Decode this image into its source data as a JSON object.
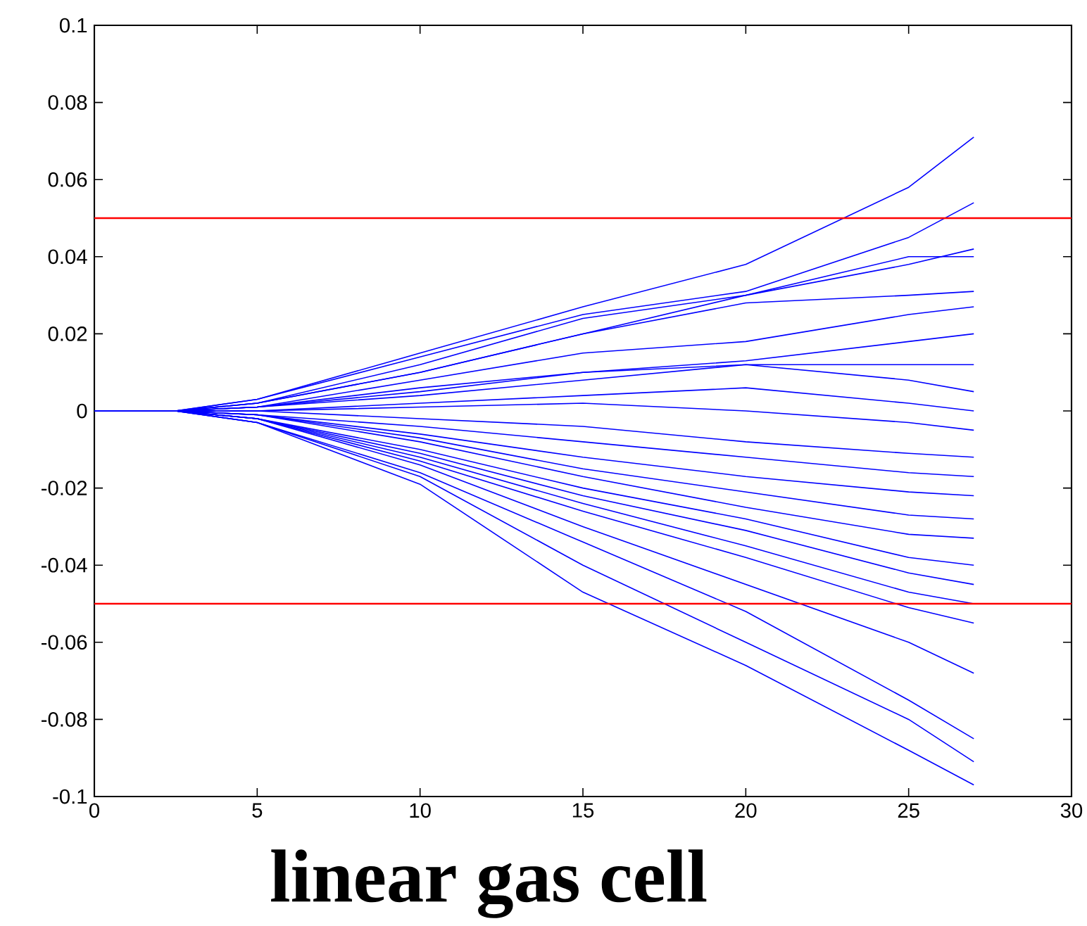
{
  "chart_data": {
    "type": "line",
    "title": "linear gas cell",
    "x": [
      0,
      2.5,
      5,
      10,
      15,
      20,
      25,
      27
    ],
    "xlim": [
      0,
      30
    ],
    "ylim": [
      -0.1,
      0.1
    ],
    "xticks": [
      0,
      5,
      10,
      15,
      20,
      25,
      30
    ],
    "yticks": [
      -0.1,
      -0.08,
      -0.06,
      -0.04,
      -0.02,
      0,
      0.02,
      0.04,
      0.06,
      0.08,
      0.1
    ],
    "ref_lines": [
      {
        "axis": "y",
        "value": 0.05,
        "color": "#ff0000"
      },
      {
        "axis": "y",
        "value": -0.05,
        "color": "#ff0000"
      }
    ],
    "series": [
      {
        "color": "#0000ff",
        "values": [
          0,
          0,
          0.003,
          0.015,
          0.027,
          0.038,
          0.058,
          0.071
        ]
      },
      {
        "color": "#0000ff",
        "values": [
          0,
          0,
          0.003,
          0.014,
          0.025,
          0.031,
          0.045,
          0.054
        ]
      },
      {
        "color": "#0000ff",
        "values": [
          0,
          0,
          0.002,
          0.012,
          0.024,
          0.03,
          0.038,
          0.042
        ]
      },
      {
        "color": "#0000ff",
        "values": [
          0,
          0,
          0.002,
          0.01,
          0.02,
          0.03,
          0.04,
          0.04
        ]
      },
      {
        "color": "#0000ff",
        "values": [
          0,
          0,
          0.002,
          0.01,
          0.02,
          0.028,
          0.03,
          0.031
        ]
      },
      {
        "color": "#0000ff",
        "values": [
          0,
          0,
          0.001,
          0.008,
          0.015,
          0.018,
          0.025,
          0.027
        ]
      },
      {
        "color": "#0000ff",
        "values": [
          0,
          0,
          0.001,
          0.006,
          0.01,
          0.013,
          0.018,
          0.02
        ]
      },
      {
        "color": "#0000ff",
        "values": [
          0,
          0,
          0.001,
          0.005,
          0.01,
          0.012,
          0.012,
          0.012
        ]
      },
      {
        "color": "#0000ff",
        "values": [
          0,
          0,
          0.001,
          0.004,
          0.008,
          0.012,
          0.008,
          0.005
        ]
      },
      {
        "color": "#0000ff",
        "values": [
          0,
          0,
          0,
          0.002,
          0.004,
          0.006,
          0.002,
          0
        ]
      },
      {
        "color": "#0000ff",
        "values": [
          0,
          0,
          0,
          0.001,
          0.002,
          0,
          -0.003,
          -0.005
        ]
      },
      {
        "color": "#0000ff",
        "values": [
          0,
          0,
          0,
          -0.002,
          -0.004,
          -0.008,
          -0.011,
          -0.012
        ]
      },
      {
        "color": "#0000ff",
        "values": [
          0,
          0,
          -0.001,
          -0.004,
          -0.008,
          -0.012,
          -0.016,
          -0.017
        ]
      },
      {
        "color": "#0000ff",
        "values": [
          0,
          0,
          -0.001,
          -0.006,
          -0.012,
          -0.017,
          -0.021,
          -0.022
        ]
      },
      {
        "color": "#0000ff",
        "values": [
          0,
          0,
          -0.001,
          -0.007,
          -0.015,
          -0.021,
          -0.027,
          -0.028
        ]
      },
      {
        "color": "#0000ff",
        "values": [
          0,
          0,
          -0.001,
          -0.008,
          -0.017,
          -0.025,
          -0.032,
          -0.033
        ]
      },
      {
        "color": "#0000ff",
        "values": [
          0,
          0,
          -0.002,
          -0.01,
          -0.02,
          -0.028,
          -0.038,
          -0.04
        ]
      },
      {
        "color": "#0000ff",
        "values": [
          0,
          0,
          -0.002,
          -0.011,
          -0.022,
          -0.031,
          -0.042,
          -0.045
        ]
      },
      {
        "color": "#0000ff",
        "values": [
          0,
          0,
          -0.002,
          -0.012,
          -0.024,
          -0.035,
          -0.047,
          -0.05
        ]
      },
      {
        "color": "#0000ff",
        "values": [
          0,
          0,
          -0.002,
          -0.013,
          -0.026,
          -0.038,
          -0.051,
          -0.055
        ]
      },
      {
        "color": "#0000ff",
        "values": [
          0,
          0,
          -0.002,
          -0.014,
          -0.03,
          -0.045,
          -0.06,
          -0.068
        ]
      },
      {
        "color": "#0000ff",
        "values": [
          0,
          0,
          -0.003,
          -0.016,
          -0.034,
          -0.052,
          -0.075,
          -0.085
        ]
      },
      {
        "color": "#0000ff",
        "values": [
          0,
          0,
          -0.003,
          -0.017,
          -0.04,
          -0.06,
          -0.08,
          -0.091
        ]
      },
      {
        "color": "#0000ff",
        "values": [
          0,
          0,
          -0.003,
          -0.019,
          -0.047,
          -0.066,
          -0.088,
          -0.097
        ]
      }
    ]
  }
}
